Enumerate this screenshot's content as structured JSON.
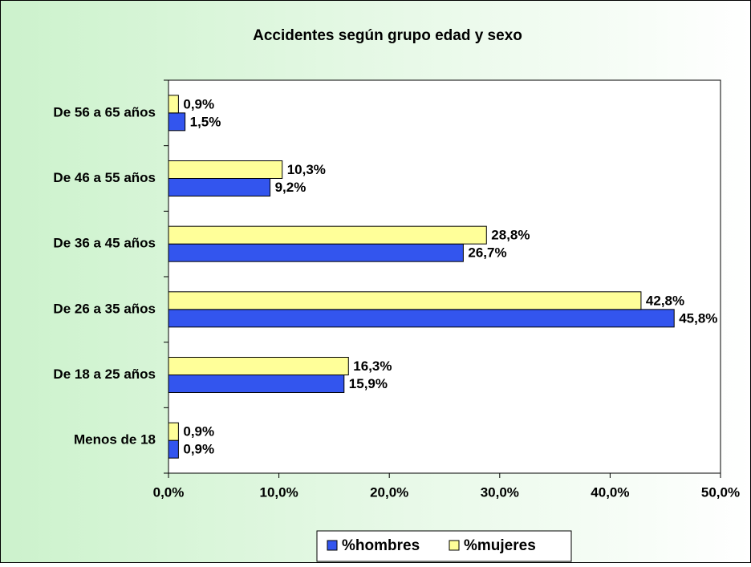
{
  "chart_data": {
    "type": "bar",
    "orientation": "horizontal",
    "title": "Accidentes según grupo edad y sexo",
    "categories": [
      "De 56 a 65 años",
      "De 46 a 55 años",
      "De 36 a 45 años",
      "De 26 a 35 años",
      "De 18 a 25 años",
      "Menos de 18"
    ],
    "series": [
      {
        "name": "%hombres",
        "color": "#3355ee",
        "values": [
          1.5,
          9.2,
          26.7,
          45.8,
          15.9,
          0.9
        ],
        "value_labels": [
          "1,5%",
          "9,2%",
          "26,7%",
          "45,8%",
          "15,9%",
          "0,9%"
        ]
      },
      {
        "name": "%mujeres",
        "color": "#ffff99",
        "values": [
          0.9,
          10.3,
          28.8,
          42.8,
          16.3,
          0.9
        ],
        "value_labels": [
          "0,9%",
          "10,3%",
          "28,8%",
          "42,8%",
          "16,3%",
          "0,9%"
        ]
      }
    ],
    "xlim": [
      0,
      50
    ],
    "xticks": [
      {
        "value": 0,
        "label": "0,0%"
      },
      {
        "value": 10,
        "label": "10,0%"
      },
      {
        "value": 20,
        "label": "20,0%"
      },
      {
        "value": 30,
        "label": "30,0%"
      },
      {
        "value": 40,
        "label": "40,0%"
      },
      {
        "value": 50,
        "label": "50,0%"
      }
    ],
    "legend": "bottom"
  }
}
